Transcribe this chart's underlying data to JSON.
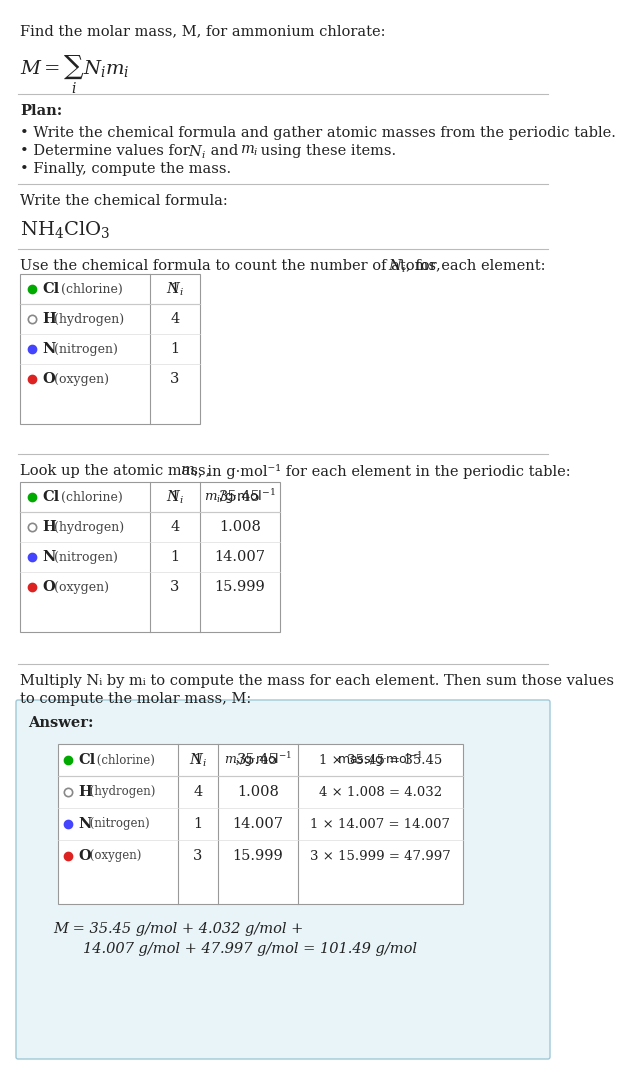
{
  "title_line1": "Find the molar mass, M, for ammonium chlorate:",
  "formula_label": "M = ∑ Nᵢmᵢ",
  "formula_subscript": "i",
  "bg_color": "#ffffff",
  "separator_color": "#cccccc",
  "answer_bg": "#e8f4f8",
  "answer_border": "#a0c8d8",
  "plan_header": "Plan:",
  "plan_bullets": [
    "• Write the chemical formula and gather atomic masses from the periodic table.",
    "• Determine values for Nᵢ and mᵢ using these items.",
    "• Finally, compute the mass."
  ],
  "formula_section_label": "Write the chemical formula:",
  "formula_text": "NH₄ClO₃",
  "count_section_label": "Use the chemical formula to count the number of atoms, Nᵢ, for each element:",
  "elements": [
    {
      "symbol": "Cl",
      "name": "chlorine",
      "color": "#00aa00",
      "filled": true,
      "Ni": "1",
      "mi": "35.45"
    },
    {
      "symbol": "H",
      "name": "hydrogen",
      "color": "#888888",
      "filled": false,
      "Ni": "4",
      "mi": "1.008"
    },
    {
      "symbol": "N",
      "name": "nitrogen",
      "color": "#4444ff",
      "filled": true,
      "Ni": "1",
      "mi": "14.007"
    },
    {
      "symbol": "O",
      "name": "oxygen",
      "color": "#dd2222",
      "filled": true,
      "Ni": "3",
      "mi": "15.999"
    }
  ],
  "mass_col": [
    "1 × 35.45 = 35.45",
    "4 × 1.008 = 4.032",
    "1 × 14.007 = 14.007",
    "3 × 15.999 = 47.997"
  ],
  "final_eq_line1": "M = 35.45 g/mol + 4.032 g/mol +",
  "final_eq_line2": "14.007 g/mol + 47.997 g/mol = 101.49 g/mol",
  "lookup_label": "Look up the atomic mass, mᵢ, in g·mol⁻¹ for each element in the periodic table:",
  "multiply_label": "Multiply Nᵢ by mᵢ to compute the mass for each element. Then sum those values\nto compute the molar mass, M:",
  "answer_label": "Answer:"
}
